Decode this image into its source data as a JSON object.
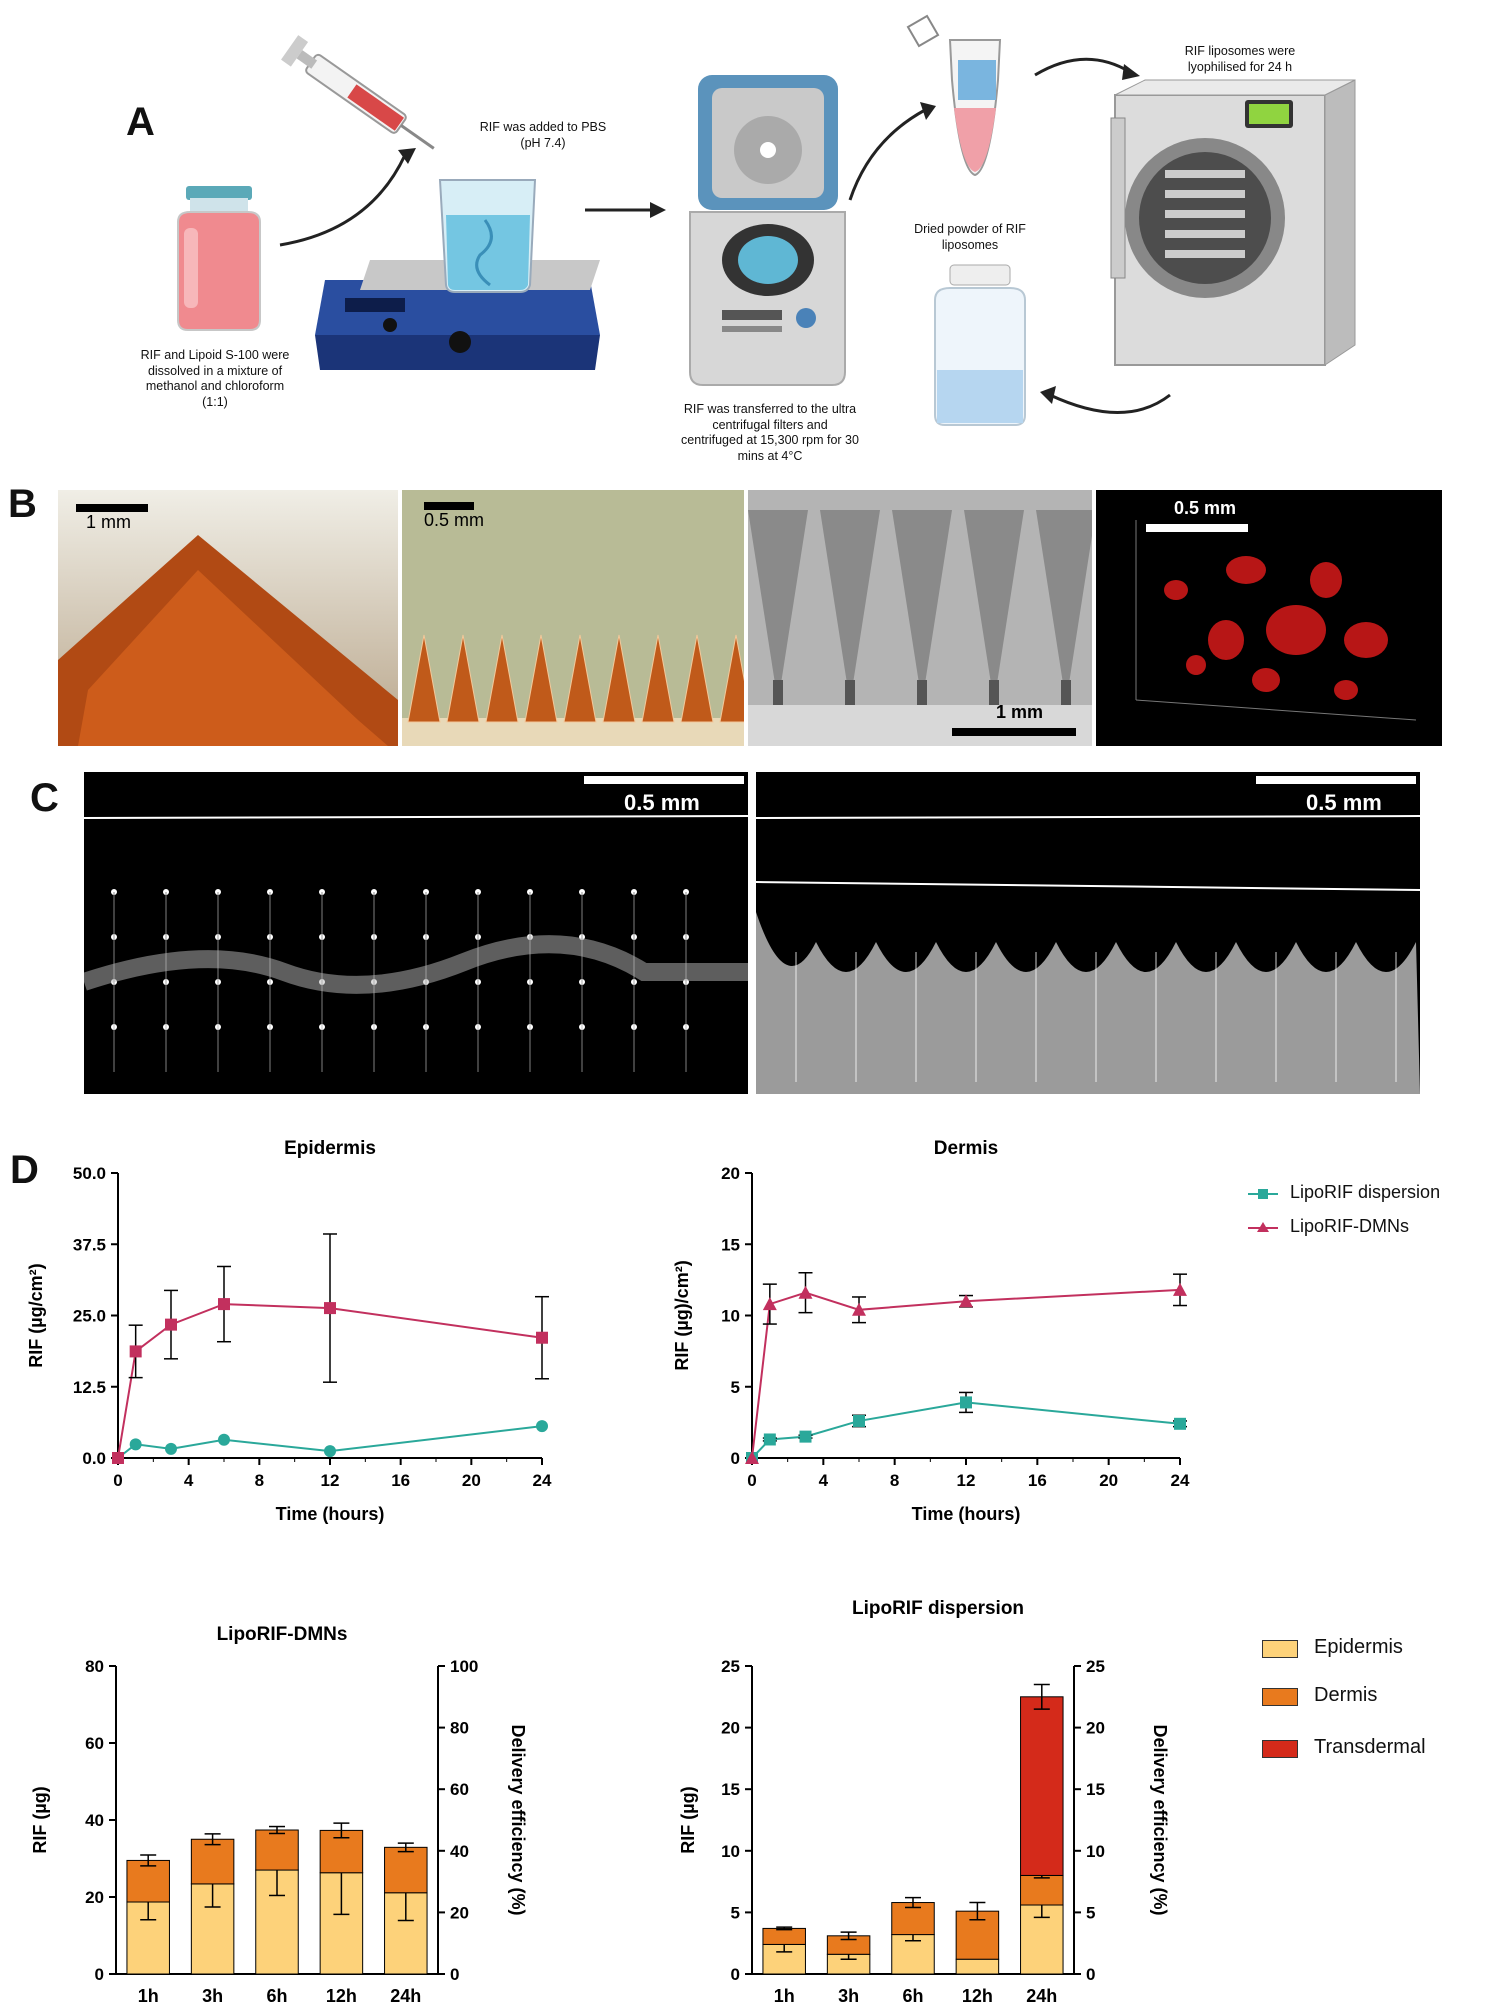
{
  "panels": {
    "a": "A",
    "b": "B",
    "c": "C",
    "d": "D"
  },
  "schematic": {
    "step1": "RIF and Lipoid S-100 were dissolved in a mixture of methanol and chloroform (1:1)",
    "step2": "RIF was added to PBS (pH 7.4)",
    "step3": "RIF was transferred to the ultra centrifugal filters and centrifuged at 15,300 rpm for 30 mins at 4°C",
    "step4": "RIF liposomes were lyophilised for 24 h",
    "step5": "Dried powder of RIF liposomes"
  },
  "micrographs": {
    "img1_scale": "1 mm",
    "img2_scale": "0.5 mm",
    "img3_scale": "1 mm",
    "img4_scale": "0.5 mm",
    "oct1_scale": "0.5 mm",
    "oct2_scale": "0.5 mm"
  },
  "colors": {
    "teal": "#2aa89a",
    "magenta": "#c2305e",
    "epidermis": "#fdd27a",
    "dermis": "#e87a1e",
    "transdermal": "#d42a1a"
  },
  "legend_lines": {
    "dispersion": "LipoRIF dispersion",
    "dmns": "LipoRIF-DMNs"
  },
  "legend_bars": {
    "epidermis": "Epidermis",
    "dermis": "Dermis",
    "transdermal": "Transdermal"
  },
  "chart_data": [
    {
      "type": "line",
      "title": "Epidermis",
      "xlabel": "Time (hours)",
      "ylabel": "RIF (µg/cm²)",
      "xlim": [
        0,
        24
      ],
      "ylim": [
        0,
        50
      ],
      "xticks": [
        "0",
        "4",
        "8",
        "12",
        "16",
        "20",
        "24"
      ],
      "yticks": [
        "0.0",
        "12.5",
        "25.0",
        "37.5",
        "50.0"
      ],
      "x": [
        0,
        1,
        3,
        6,
        12,
        24
      ],
      "series": [
        {
          "name": "LipoRIF dispersion",
          "values": [
            0,
            2.4,
            1.6,
            3.2,
            1.2,
            5.6
          ],
          "errors": [
            0,
            0,
            0,
            0,
            0,
            0
          ]
        },
        {
          "name": "LipoRIF-DMNs",
          "values": [
            0,
            18.7,
            23.4,
            27.0,
            26.3,
            21.1
          ],
          "errors": [
            0,
            4.6,
            6.0,
            6.6,
            13.0,
            7.2
          ]
        }
      ]
    },
    {
      "type": "line",
      "title": "Dermis",
      "xlabel": "Time (hours)",
      "ylabel": "RIF (µg)/cm²)",
      "xlim": [
        0,
        24
      ],
      "ylim": [
        0,
        20
      ],
      "xticks": [
        "0",
        "4",
        "8",
        "12",
        "16",
        "20",
        "24"
      ],
      "yticks": [
        "0",
        "5",
        "10",
        "15",
        "20"
      ],
      "x": [
        0,
        1,
        3,
        6,
        12,
        24
      ],
      "series": [
        {
          "name": "LipoRIF dispersion",
          "values": [
            0,
            1.3,
            1.5,
            2.6,
            3.9,
            2.4
          ],
          "errors": [
            0,
            0.1,
            0.1,
            0.4,
            0.7,
            0.2
          ]
        },
        {
          "name": "LipoRIF-DMNs",
          "values": [
            0,
            10.8,
            11.6,
            10.4,
            11.0,
            11.8
          ],
          "errors": [
            0,
            1.4,
            1.4,
            0.9,
            0.4,
            1.1
          ]
        }
      ]
    },
    {
      "type": "bar",
      "title": "LipoRIF-DMNs",
      "ylabel": "RIF (µg)",
      "y2label": "Delivery efficiency (%)",
      "categories": [
        "1h",
        "3h",
        "6h",
        "12h",
        "24h"
      ],
      "ylim": [
        0,
        80
      ],
      "y2lim": [
        0,
        100
      ],
      "yticks": [
        "0",
        "20",
        "40",
        "60",
        "80"
      ],
      "y2ticks": [
        "0",
        "20",
        "40",
        "60",
        "80",
        "100"
      ],
      "stacked": true,
      "series": [
        {
          "name": "Epidermis",
          "values": [
            18.7,
            23.4,
            27.0,
            26.3,
            21.1
          ],
          "errors": [
            4.6,
            6.0,
            6.6,
            10.8,
            7.2
          ]
        },
        {
          "name": "Dermis",
          "values": [
            10.8,
            11.6,
            10.4,
            11.0,
            11.8
          ],
          "errors": [
            1.4,
            1.4,
            0.9,
            1.9,
            1.1
          ]
        }
      ]
    },
    {
      "type": "bar",
      "title": "LipoRIF dispersion",
      "ylabel": "RIF (µg)",
      "y2label": "Delivery efficiency (%)",
      "categories": [
        "1h",
        "3h",
        "6h",
        "12h",
        "24h"
      ],
      "ylim": [
        0,
        25
      ],
      "y2lim": [
        0,
        25
      ],
      "yticks": [
        "0",
        "5",
        "10",
        "15",
        "20",
        "25"
      ],
      "y2ticks": [
        "0",
        "5",
        "10",
        "15",
        "20",
        "25"
      ],
      "stacked": true,
      "series": [
        {
          "name": "Epidermis",
          "values": [
            2.4,
            1.6,
            3.2,
            1.2,
            5.6
          ],
          "errors": [
            0.6,
            0.4,
            0.5,
            0,
            1.0
          ]
        },
        {
          "name": "Dermis",
          "values": [
            1.3,
            1.5,
            2.6,
            3.9,
            2.4
          ],
          "errors": [
            0.1,
            0.3,
            0.4,
            0.7,
            0.2
          ]
        },
        {
          "name": "Transdermal",
          "values": [
            0,
            0,
            0,
            0,
            14.5
          ],
          "errors": [
            0,
            0,
            0,
            0,
            1.0
          ]
        }
      ]
    }
  ]
}
